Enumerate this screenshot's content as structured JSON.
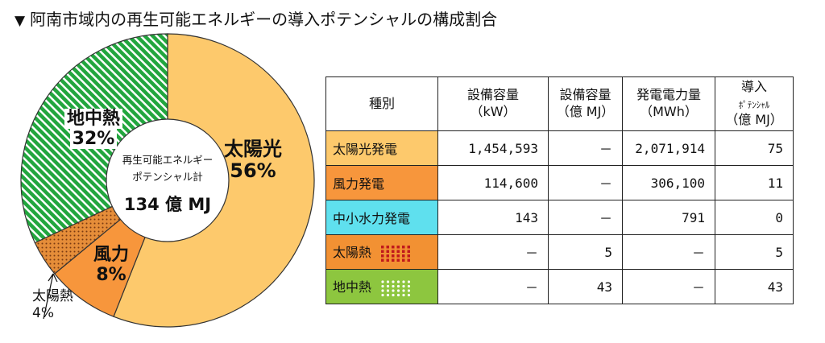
{
  "title": "阿南市域内の再生可能エネルギーの導入ポテンシャルの構成割合",
  "title_marker": "▼",
  "chart_data": [
    {
      "type": "pie",
      "title": "",
      "center_label": "再生可能エネルギーポテンシャル計",
      "center_line1": "再生可能エネルギー",
      "center_line2": "ポテンシャル計",
      "center_value": "134 億 MJ",
      "slices": [
        {
          "name": "太陽光",
          "label": "56%",
          "value": 56,
          "color": "#fdc96c"
        },
        {
          "name": "風力",
          "label": "8%",
          "value": 8,
          "color": "#f7963c"
        },
        {
          "name": "太陽熱",
          "label": "4%",
          "value": 4,
          "color": "#e58d39"
        },
        {
          "name": "地中熱",
          "label": "32%",
          "value": 32,
          "color": "#33a842"
        }
      ]
    },
    {
      "type": "table",
      "columns": [
        "種別",
        "設備容量\n（kW）",
        "設備容量\n（億 MJ）",
        "発電電力量\n（MWh）",
        "導入\nﾎﾟﾃﾝｼｬﾙ\n（億 MJ）"
      ],
      "rows": [
        {
          "cat": "太陽光発電",
          "color": "#fdc96c",
          "v": [
            "1,454,593",
            "－",
            "2,071,914",
            "75"
          ]
        },
        {
          "cat": "風力発電",
          "color": "#f7963c",
          "v": [
            "114,600",
            "－",
            "306,100",
            "11"
          ]
        },
        {
          "cat": "中小水力発電",
          "color": "#5fe0ee",
          "v": [
            "143",
            "－",
            "791",
            "0"
          ]
        },
        {
          "cat": "太陽熱",
          "color": "#f29133",
          "v": [
            "－",
            "5",
            "－",
            "5"
          ]
        },
        {
          "cat": "地中熱",
          "color": "#8dc63f",
          "v": [
            "－",
            "43",
            "－",
            "43"
          ]
        }
      ]
    }
  ],
  "labels": {
    "solar": {
      "name": "太陽光",
      "pct": "56%"
    },
    "geo": {
      "name": "地中熱",
      "pct": "32%"
    },
    "wind": {
      "name": "風力",
      "pct": "8%"
    },
    "sheat": {
      "name": "太陽熱",
      "pct": "4%"
    }
  },
  "table_head": {
    "h0": "種別",
    "h1a": "設備容量",
    "h1b": "（kW）",
    "h2a": "設備容量",
    "h2b": "（億 MJ）",
    "h3a": "発電電力量",
    "h3b": "（MWh）",
    "h4a": "導入",
    "h4b": "ﾎﾟﾃﾝｼｬﾙ",
    "h4c": "（億 MJ）"
  }
}
